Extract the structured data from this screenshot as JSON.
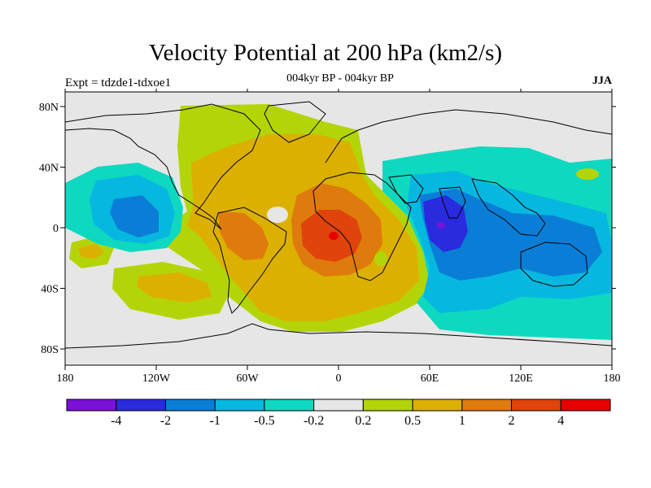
{
  "header": {
    "title": "Velocity Potential at 200 hPa (km2/s)",
    "subtitle": "004kyr BP - 004kyr BP",
    "experiment": "Expt = tdzde1-tdxoe1",
    "season": "JJA"
  },
  "axes": {
    "lon_ticks": [
      "180",
      "120W",
      "60W",
      "0",
      "60E",
      "120E",
      "180"
    ],
    "lat_ticks": [
      "80N",
      "40N",
      "0",
      "40S",
      "80S"
    ]
  },
  "colorbar": {
    "colors": [
      "#7b12d8",
      "#2a2adf",
      "#0a7ed6",
      "#06b8e0",
      "#0ed9c0",
      "#e6e6e6",
      "#b3d507",
      "#dcb000",
      "#df7a0c",
      "#e0430c",
      "#e60000"
    ],
    "labels": [
      "-4",
      "-2",
      "-1",
      "-0.5",
      "-0.2",
      "0.2",
      "0.5",
      "1",
      "2",
      "4"
    ]
  },
  "colors": {
    "background_field": "#e6e6e6",
    "coastline": "#000000"
  }
}
